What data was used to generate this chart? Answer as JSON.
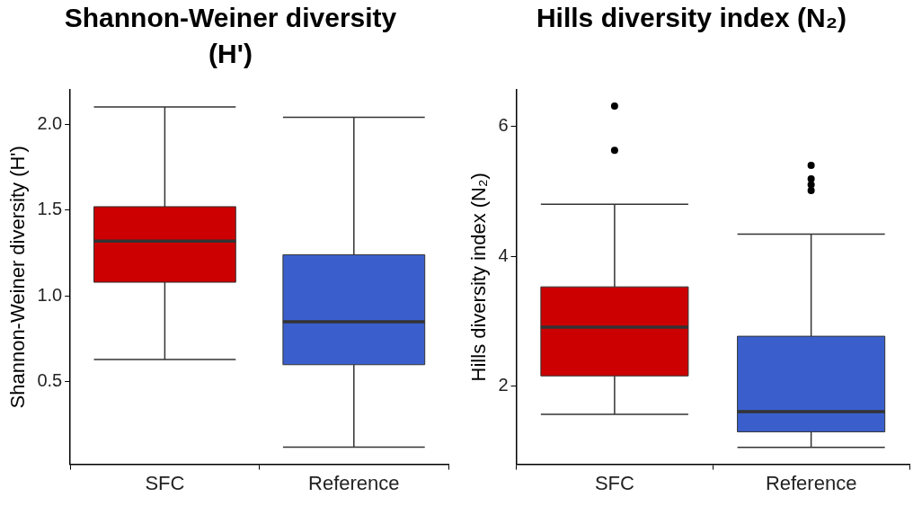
{
  "chart_data": [
    {
      "type": "box",
      "title": "Shannon-Weiner diversity (H')",
      "ylabel": "Shannon-Weiner diversity (H')",
      "categories": [
        "SFC",
        "Reference"
      ],
      "colors": [
        "#cc0000",
        "#3a5fcd"
      ],
      "boxes": [
        {
          "low": 0.63,
          "q1": 1.08,
          "median": 1.32,
          "q3": 1.52,
          "high": 2.1
        },
        {
          "low": 0.12,
          "q1": 0.6,
          "median": 0.85,
          "q3": 1.24,
          "high": 2.04
        }
      ],
      "ylim": [
        0.02,
        2.2
      ],
      "yticks": [
        {
          "value": 0.5,
          "label": "0.5"
        },
        {
          "value": 1,
          "label": "1.0"
        },
        {
          "value": 1.5,
          "label": "1.5"
        },
        {
          "value": 2,
          "label": "2.0"
        }
      ]
    },
    {
      "type": "box",
      "title": "Hills diversity index (N₂)",
      "ylabel": "Hills diversity index (N₂)",
      "categories": [
        "SFC",
        "Reference"
      ],
      "colors": [
        "#cc0000",
        "#3a5fcd"
      ],
      "boxes": [
        {
          "low": 1.57,
          "q1": 2.16,
          "median": 2.91,
          "q3": 3.53,
          "high": 4.8,
          "outliers": [
            5.63,
            6.31
          ]
        },
        {
          "low": 1.06,
          "q1": 1.3,
          "median": 1.61,
          "q3": 2.77,
          "high": 4.34,
          "outliers": [
            5.01,
            5.1,
            5.19,
            5.4
          ]
        }
      ],
      "ylim": [
        0.8,
        6.56
      ],
      "yticks": [
        2,
        4,
        6
      ]
    }
  ]
}
